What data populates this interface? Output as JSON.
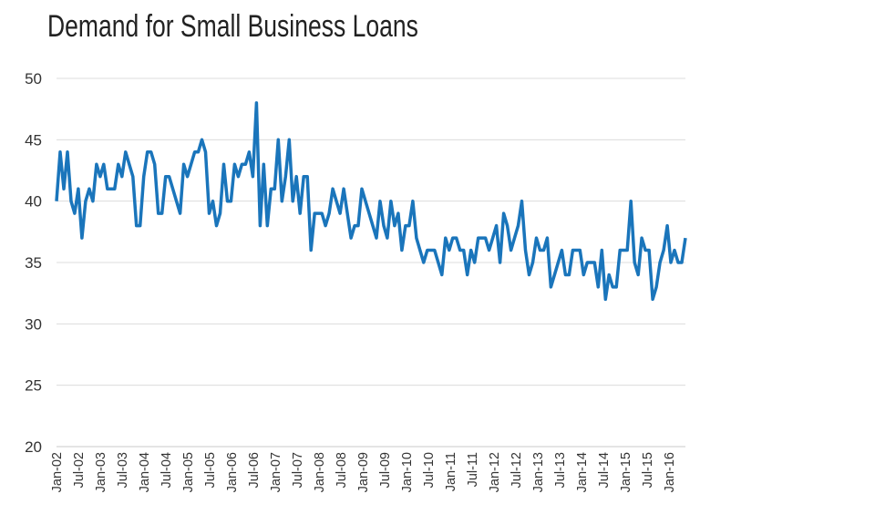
{
  "chart_data": {
    "type": "line",
    "title": "Demand for Small Business Loans",
    "xlabel": "",
    "ylabel": "",
    "ylim": [
      20,
      50
    ],
    "yticks": [
      20,
      25,
      30,
      35,
      40,
      45,
      50
    ],
    "x_start": "Jan-02",
    "x_frequency": "monthly",
    "xtick_labels": [
      "Jan-02",
      "Jul-02",
      "Jan-03",
      "Jul-03",
      "Jan-04",
      "Jul-04",
      "Jan-05",
      "Jul-05",
      "Jan-06",
      "Jul-06",
      "Jan-07",
      "Jul-07",
      "Jan-08",
      "Jul-08",
      "Jan-09",
      "Jul-09",
      "Jan-10",
      "Jul-10",
      "Jan-11",
      "Jul-11",
      "Jan-12",
      "Jul-12",
      "Jan-13",
      "Jul-13",
      "Jan-14",
      "Jul-14",
      "Jan-15",
      "Jul-15",
      "Jan-16"
    ],
    "grid": true,
    "color": "#1a75bb",
    "series": [
      {
        "values": [
          40,
          44,
          41,
          44,
          40,
          39,
          41,
          37,
          40,
          41,
          40,
          43,
          42,
          43,
          41,
          41,
          41,
          43,
          42,
          44,
          43,
          42,
          38,
          38,
          42,
          44,
          44,
          43,
          39,
          39,
          42,
          42,
          41,
          40,
          39,
          43,
          42,
          43,
          44,
          44,
          45,
          44,
          39,
          40,
          38,
          39,
          43,
          40,
          40,
          43,
          42,
          43,
          43,
          44,
          42,
          48,
          38,
          43,
          38,
          41,
          41,
          45,
          40,
          42,
          45,
          40,
          42,
          39,
          42,
          42,
          36,
          39,
          39,
          39,
          38,
          39,
          41,
          40,
          39,
          41,
          39,
          37,
          38,
          38,
          41,
          40,
          39,
          38,
          37,
          40,
          38,
          37,
          40,
          38,
          39,
          36,
          38,
          38,
          40,
          37,
          36,
          35,
          36,
          36,
          36,
          35,
          34,
          37,
          36,
          37,
          37,
          36,
          36,
          34,
          36,
          35,
          37,
          37,
          37,
          36,
          37,
          38,
          35,
          39,
          38,
          36,
          37,
          38,
          40,
          36,
          34,
          35,
          37,
          36,
          36,
          37,
          33,
          34,
          35,
          36,
          34,
          34,
          36,
          36,
          36,
          34,
          35,
          35,
          35,
          33,
          36,
          32,
          34,
          33,
          33,
          36,
          36,
          36,
          40,
          35,
          34,
          37,
          36,
          36,
          32,
          33,
          35,
          36,
          38,
          35,
          36,
          35,
          35,
          37
        ]
      }
    ]
  }
}
